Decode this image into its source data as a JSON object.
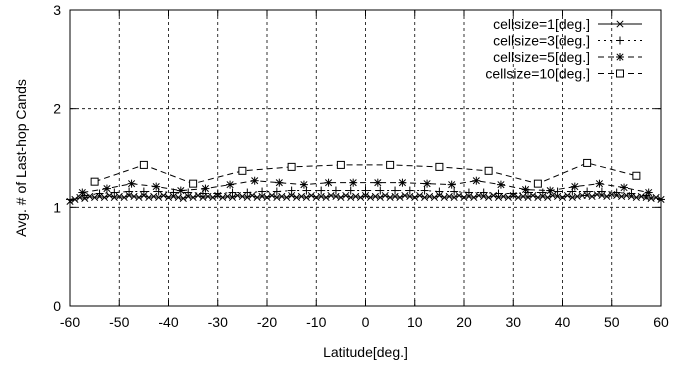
{
  "chart_data": {
    "type": "line",
    "xlabel": "Latitude[deg.]",
    "ylabel": "Avg. # of Last-hop Cands",
    "xlim": [
      -60,
      60
    ],
    "ylim": [
      0,
      3
    ],
    "xticks": [
      -60,
      -50,
      -40,
      -30,
      -20,
      -10,
      0,
      10,
      20,
      30,
      40,
      50,
      60
    ],
    "yticks": [
      0,
      1,
      2,
      3
    ],
    "grid": true,
    "legend_position": "top-right",
    "series": [
      {
        "name": "cellsize=1[deg.]",
        "marker": "x",
        "dash": "solid",
        "x": [
          -60,
          -59,
          -58,
          -57,
          -56,
          -55,
          -54,
          -53,
          -52,
          -51,
          -50,
          -49,
          -48,
          -47,
          -46,
          -45,
          -44,
          -43,
          -42,
          -41,
          -40,
          -39,
          -38,
          -37,
          -36,
          -35,
          -34,
          -33,
          -32,
          -31,
          -30,
          -29,
          -28,
          -27,
          -26,
          -25,
          -24,
          -23,
          -22,
          -21,
          -20,
          -19,
          -18,
          -17,
          -16,
          -15,
          -14,
          -13,
          -12,
          -11,
          -10,
          -9,
          -8,
          -7,
          -6,
          -5,
          -4,
          -3,
          -2,
          -1,
          0,
          1,
          2,
          3,
          4,
          5,
          6,
          7,
          8,
          9,
          10,
          11,
          12,
          13,
          14,
          15,
          16,
          17,
          18,
          19,
          20,
          21,
          22,
          23,
          24,
          25,
          26,
          27,
          28,
          29,
          30,
          31,
          32,
          33,
          34,
          35,
          36,
          37,
          38,
          39,
          40,
          41,
          42,
          43,
          44,
          45,
          46,
          47,
          48,
          49,
          50,
          51,
          52,
          53,
          54,
          55,
          56,
          57,
          58,
          59,
          60
        ],
        "y": [
          1.06,
          1.08,
          1.1,
          1.09,
          1.11,
          1.1,
          1.11,
          1.1,
          1.12,
          1.1,
          1.11,
          1.1,
          1.12,
          1.11,
          1.1,
          1.12,
          1.1,
          1.11,
          1.1,
          1.12,
          1.1,
          1.11,
          1.1,
          1.09,
          1.11,
          1.1,
          1.12,
          1.1,
          1.11,
          1.1,
          1.12,
          1.1,
          1.11,
          1.1,
          1.12,
          1.11,
          1.1,
          1.12,
          1.1,
          1.11,
          1.1,
          1.12,
          1.1,
          1.11,
          1.1,
          1.12,
          1.1,
          1.11,
          1.1,
          1.12,
          1.1,
          1.11,
          1.1,
          1.12,
          1.11,
          1.1,
          1.12,
          1.1,
          1.11,
          1.1,
          1.12,
          1.1,
          1.11,
          1.1,
          1.12,
          1.1,
          1.11,
          1.1,
          1.12,
          1.11,
          1.1,
          1.12,
          1.1,
          1.11,
          1.1,
          1.12,
          1.1,
          1.11,
          1.1,
          1.12,
          1.1,
          1.11,
          1.1,
          1.12,
          1.11,
          1.1,
          1.12,
          1.1,
          1.11,
          1.1,
          1.12,
          1.1,
          1.11,
          1.1,
          1.12,
          1.1,
          1.11,
          1.1,
          1.12,
          1.11,
          1.1,
          1.12,
          1.1,
          1.11,
          1.12,
          1.12,
          1.11,
          1.13,
          1.12,
          1.11,
          1.13,
          1.12,
          1.11,
          1.12,
          1.11,
          1.1,
          1.11,
          1.1,
          1.09,
          1.1,
          1.08
        ]
      },
      {
        "name": "cellsize=3[deg.]",
        "marker": "+",
        "dash": "dotted",
        "x": [
          -60,
          -57,
          -54,
          -51,
          -48,
          -45,
          -42,
          -39,
          -36,
          -33,
          -30,
          -27,
          -24,
          -21,
          -18,
          -15,
          -12,
          -9,
          -6,
          -3,
          0,
          3,
          6,
          9,
          12,
          15,
          18,
          21,
          24,
          27,
          30,
          33,
          36,
          39,
          42,
          45,
          48,
          51,
          54,
          57,
          60
        ],
        "y": [
          1.08,
          1.12,
          1.14,
          1.15,
          1.16,
          1.16,
          1.16,
          1.15,
          1.15,
          1.14,
          1.14,
          1.15,
          1.15,
          1.16,
          1.16,
          1.17,
          1.17,
          1.17,
          1.17,
          1.17,
          1.17,
          1.17,
          1.17,
          1.17,
          1.17,
          1.16,
          1.16,
          1.15,
          1.15,
          1.14,
          1.14,
          1.15,
          1.15,
          1.16,
          1.16,
          1.16,
          1.16,
          1.15,
          1.14,
          1.12,
          1.08
        ]
      },
      {
        "name": "cellsize=5[deg.]",
        "marker": "*",
        "dash": "dashed",
        "x": [
          -57.5,
          -52.5,
          -47.5,
          -42.5,
          -37.5,
          -32.5,
          -27.5,
          -22.5,
          -17.5,
          -12.5,
          -7.5,
          -2.5,
          2.5,
          7.5,
          12.5,
          17.5,
          22.5,
          27.5,
          32.5,
          37.5,
          42.5,
          47.5,
          52.5,
          57.5
        ],
        "y": [
          1.15,
          1.19,
          1.24,
          1.21,
          1.17,
          1.19,
          1.23,
          1.27,
          1.25,
          1.23,
          1.25,
          1.25,
          1.25,
          1.25,
          1.24,
          1.23,
          1.27,
          1.23,
          1.18,
          1.17,
          1.21,
          1.24,
          1.2,
          1.15
        ]
      },
      {
        "name": "cellsize=10[deg.]",
        "marker": "square",
        "dash": "dashed",
        "x": [
          -55,
          -45,
          -35,
          -25,
          -15,
          -5,
          5,
          15,
          25,
          35,
          45,
          55
        ],
        "y": [
          1.26,
          1.43,
          1.24,
          1.37,
          1.41,
          1.43,
          1.43,
          1.41,
          1.37,
          1.24,
          1.45,
          1.32
        ]
      }
    ]
  }
}
